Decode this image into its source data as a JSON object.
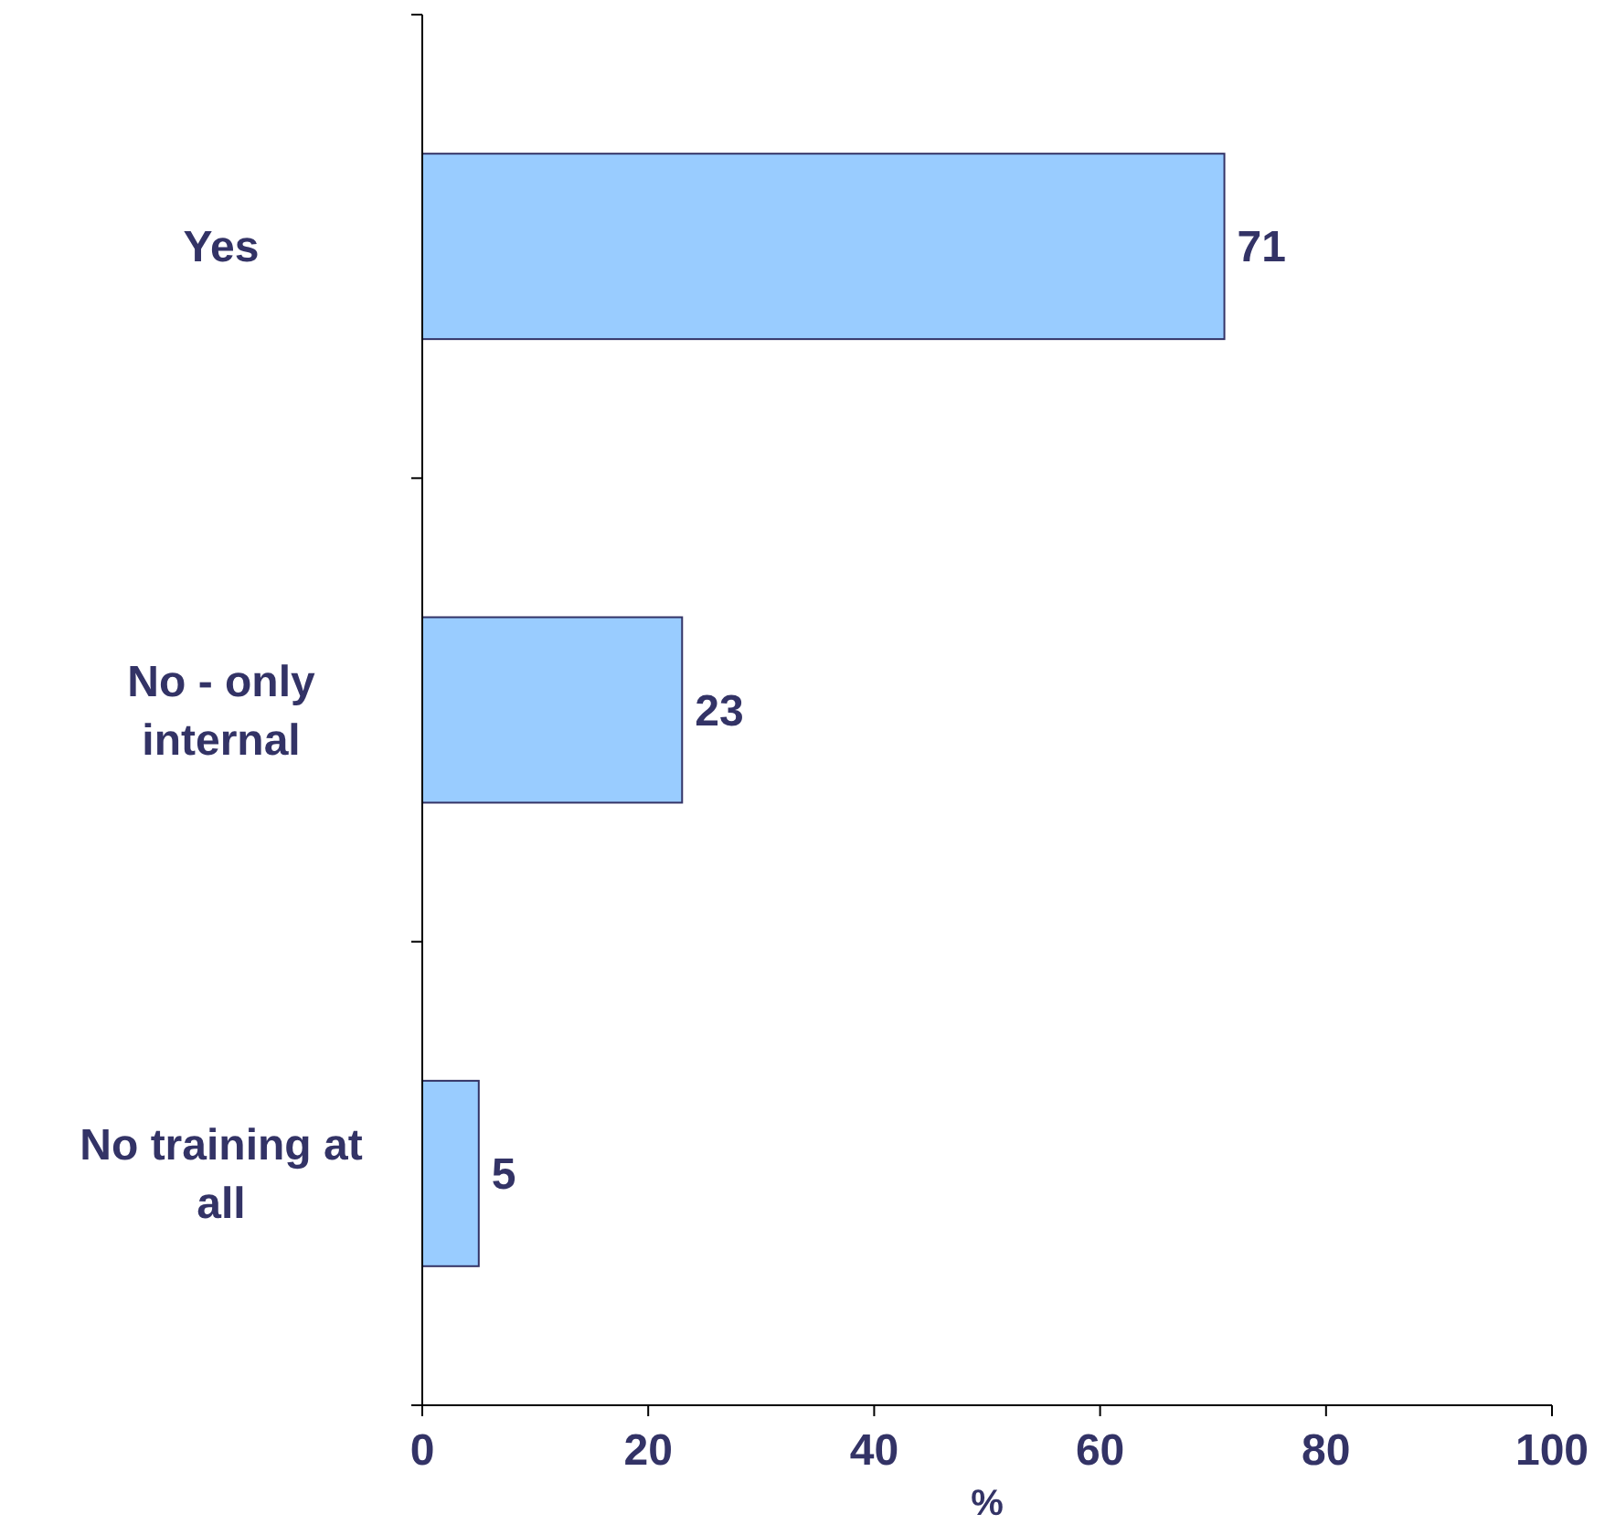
{
  "chart_data": {
    "type": "bar",
    "orientation": "horizontal",
    "categories": [
      "Yes",
      "No - only internal",
      "No training at all"
    ],
    "values": [
      71,
      23,
      5
    ],
    "color": "#99ccff",
    "xlim": [
      0,
      100
    ],
    "xticks": [
      0,
      20,
      40,
      60,
      80,
      100
    ],
    "xlabel": "%",
    "data_labels": true
  }
}
